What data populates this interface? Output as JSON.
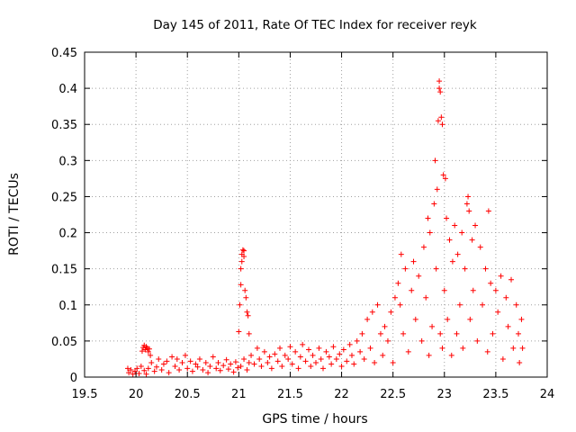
{
  "chart_data": {
    "type": "scatter",
    "title": "Day 145 of 2011, Rate Of TEC Index for receiver reyk",
    "xlabel": "GPS time / hours",
    "ylabel": "ROTI / TECUs",
    "xlim": [
      19.5,
      24
    ],
    "ylim": [
      0,
      0.45
    ],
    "x_ticks": [
      19.5,
      20,
      20.5,
      21,
      21.5,
      22,
      22.5,
      23,
      23.5,
      24
    ],
    "x_tick_labels": [
      "19.5",
      "20",
      "20.5",
      "21",
      "21.5",
      "22",
      "22.5",
      "23",
      "23.5",
      "24"
    ],
    "y_ticks": [
      0,
      0.05,
      0.1,
      0.15,
      0.2,
      0.25,
      0.3,
      0.35,
      0.4,
      0.45
    ],
    "y_tick_labels": [
      "0",
      "0.05",
      "0.1",
      "0.15",
      "0.2",
      "0.25",
      "0.3",
      "0.35",
      "0.4",
      "0.45"
    ],
    "grid": true,
    "marker": "+",
    "marker_color": "#ff0000",
    "series": [
      {
        "name": "reyk",
        "points": [
          [
            19.92,
            0.012
          ],
          [
            19.93,
            0.006
          ],
          [
            19.95,
            0.01
          ],
          [
            19.97,
            0.004
          ],
          [
            19.99,
            0.008
          ],
          [
            20.01,
            0.012
          ],
          [
            20.03,
            0.005
          ],
          [
            20.05,
            0.015
          ],
          [
            20.06,
            0.036
          ],
          [
            20.07,
            0.041
          ],
          [
            20.08,
            0.044
          ],
          [
            20.09,
            0.038
          ],
          [
            20.1,
            0.042
          ],
          [
            20.11,
            0.04
          ],
          [
            20.12,
            0.035
          ],
          [
            20.13,
            0.039
          ],
          [
            20.14,
            0.03
          ],
          [
            20.08,
            0.009
          ],
          [
            20.1,
            0.004
          ],
          [
            20.12,
            0.012
          ],
          [
            20.15,
            0.02
          ],
          [
            20.18,
            0.008
          ],
          [
            20.2,
            0.014
          ],
          [
            20.22,
            0.025
          ],
          [
            20.25,
            0.01
          ],
          [
            20.27,
            0.018
          ],
          [
            20.3,
            0.022
          ],
          [
            20.32,
            0.006
          ],
          [
            20.35,
            0.028
          ],
          [
            20.38,
            0.015
          ],
          [
            20.4,
            0.025
          ],
          [
            20.42,
            0.01
          ],
          [
            20.45,
            0.02
          ],
          [
            20.48,
            0.03
          ],
          [
            20.5,
            0.012
          ],
          [
            20.53,
            0.022
          ],
          [
            20.55,
            0.008
          ],
          [
            20.58,
            0.018
          ],
          [
            20.6,
            0.014
          ],
          [
            20.62,
            0.025
          ],
          [
            20.65,
            0.01
          ],
          [
            20.68,
            0.02
          ],
          [
            20.7,
            0.006
          ],
          [
            20.72,
            0.015
          ],
          [
            20.75,
            0.028
          ],
          [
            20.78,
            0.012
          ],
          [
            20.8,
            0.02
          ],
          [
            20.82,
            0.009
          ],
          [
            20.85,
            0.016
          ],
          [
            20.88,
            0.024
          ],
          [
            20.9,
            0.011
          ],
          [
            20.92,
            0.018
          ],
          [
            20.95,
            0.007
          ],
          [
            20.97,
            0.021
          ],
          [
            20.99,
            0.013
          ],
          [
            21.0,
            0.063
          ],
          [
            21.01,
            0.1
          ],
          [
            21.02,
            0.128
          ],
          [
            21.02,
            0.15
          ],
          [
            21.03,
            0.16
          ],
          [
            21.03,
            0.17
          ],
          [
            21.04,
            0.176
          ],
          [
            21.05,
            0.175
          ],
          [
            21.05,
            0.167
          ],
          [
            21.06,
            0.12
          ],
          [
            21.07,
            0.11
          ],
          [
            21.08,
            0.09
          ],
          [
            21.09,
            0.085
          ],
          [
            21.1,
            0.06
          ],
          [
            21.02,
            0.015
          ],
          [
            21.05,
            0.025
          ],
          [
            21.08,
            0.01
          ],
          [
            21.1,
            0.02
          ],
          [
            21.12,
            0.03
          ],
          [
            21.15,
            0.018
          ],
          [
            21.18,
            0.04
          ],
          [
            21.2,
            0.025
          ],
          [
            21.22,
            0.015
          ],
          [
            21.25,
            0.035
          ],
          [
            21.28,
            0.02
          ],
          [
            21.3,
            0.028
          ],
          [
            21.32,
            0.012
          ],
          [
            21.35,
            0.032
          ],
          [
            21.38,
            0.022
          ],
          [
            21.4,
            0.04
          ],
          [
            21.42,
            0.015
          ],
          [
            21.45,
            0.03
          ],
          [
            21.48,
            0.025
          ],
          [
            21.5,
            0.042
          ],
          [
            21.52,
            0.018
          ],
          [
            21.55,
            0.035
          ],
          [
            21.58,
            0.012
          ],
          [
            21.6,
            0.028
          ],
          [
            21.62,
            0.045
          ],
          [
            21.65,
            0.022
          ],
          [
            21.68,
            0.038
          ],
          [
            21.7,
            0.015
          ],
          [
            21.72,
            0.03
          ],
          [
            21.75,
            0.02
          ],
          [
            21.78,
            0.04
          ],
          [
            21.8,
            0.025
          ],
          [
            21.82,
            0.012
          ],
          [
            21.85,
            0.035
          ],
          [
            21.88,
            0.028
          ],
          [
            21.9,
            0.018
          ],
          [
            21.92,
            0.042
          ],
          [
            21.95,
            0.025
          ],
          [
            21.98,
            0.032
          ],
          [
            22.0,
            0.015
          ],
          [
            22.02,
            0.038
          ],
          [
            22.05,
            0.022
          ],
          [
            22.08,
            0.045
          ],
          [
            22.1,
            0.03
          ],
          [
            22.12,
            0.018
          ],
          [
            22.15,
            0.05
          ],
          [
            22.18,
            0.035
          ],
          [
            22.2,
            0.06
          ],
          [
            22.22,
            0.025
          ],
          [
            22.25,
            0.08
          ],
          [
            22.28,
            0.04
          ],
          [
            22.3,
            0.09
          ],
          [
            22.32,
            0.02
          ],
          [
            22.35,
            0.1
          ],
          [
            22.38,
            0.06
          ],
          [
            22.4,
            0.03
          ],
          [
            22.42,
            0.07
          ],
          [
            22.45,
            0.05
          ],
          [
            22.48,
            0.09
          ],
          [
            22.5,
            0.02
          ],
          [
            22.52,
            0.11
          ],
          [
            22.55,
            0.13
          ],
          [
            22.57,
            0.1
          ],
          [
            22.58,
            0.17
          ],
          [
            22.6,
            0.06
          ],
          [
            22.62,
            0.15
          ],
          [
            22.65,
            0.035
          ],
          [
            22.68,
            0.12
          ],
          [
            22.7,
            0.16
          ],
          [
            22.72,
            0.08
          ],
          [
            22.75,
            0.14
          ],
          [
            22.78,
            0.05
          ],
          [
            22.8,
            0.18
          ],
          [
            22.82,
            0.11
          ],
          [
            22.84,
            0.22
          ],
          [
            22.85,
            0.03
          ],
          [
            22.86,
            0.2
          ],
          [
            22.88,
            0.07
          ],
          [
            22.9,
            0.24
          ],
          [
            22.91,
            0.3
          ],
          [
            22.92,
            0.15
          ],
          [
            22.93,
            0.26
          ],
          [
            22.94,
            0.355
          ],
          [
            22.95,
            0.4
          ],
          [
            22.95,
            0.41
          ],
          [
            22.96,
            0.395
          ],
          [
            22.96,
            0.06
          ],
          [
            22.97,
            0.36
          ],
          [
            22.98,
            0.35
          ],
          [
            22.98,
            0.04
          ],
          [
            22.99,
            0.28
          ],
          [
            23.0,
            0.12
          ],
          [
            23.01,
            0.275
          ],
          [
            23.02,
            0.22
          ],
          [
            23.03,
            0.08
          ],
          [
            23.05,
            0.19
          ],
          [
            23.07,
            0.03
          ],
          [
            23.08,
            0.16
          ],
          [
            23.1,
            0.21
          ],
          [
            23.12,
            0.06
          ],
          [
            23.13,
            0.17
          ],
          [
            23.15,
            0.1
          ],
          [
            23.17,
            0.2
          ],
          [
            23.18,
            0.04
          ],
          [
            23.2,
            0.15
          ],
          [
            23.22,
            0.24
          ],
          [
            23.23,
            0.25
          ],
          [
            23.24,
            0.23
          ],
          [
            23.25,
            0.08
          ],
          [
            23.27,
            0.19
          ],
          [
            23.28,
            0.12
          ],
          [
            23.3,
            0.21
          ],
          [
            23.32,
            0.05
          ],
          [
            23.35,
            0.18
          ],
          [
            23.37,
            0.1
          ],
          [
            23.4,
            0.15
          ],
          [
            23.42,
            0.035
          ],
          [
            23.43,
            0.23
          ],
          [
            23.45,
            0.13
          ],
          [
            23.47,
            0.06
          ],
          [
            23.5,
            0.12
          ],
          [
            23.52,
            0.09
          ],
          [
            23.55,
            0.14
          ],
          [
            23.57,
            0.025
          ],
          [
            23.6,
            0.11
          ],
          [
            23.62,
            0.07
          ],
          [
            23.65,
            0.135
          ],
          [
            23.67,
            0.04
          ],
          [
            23.7,
            0.1
          ],
          [
            23.72,
            0.06
          ],
          [
            23.73,
            0.02
          ],
          [
            23.75,
            0.08
          ],
          [
            23.76,
            0.04
          ]
        ]
      }
    ]
  }
}
